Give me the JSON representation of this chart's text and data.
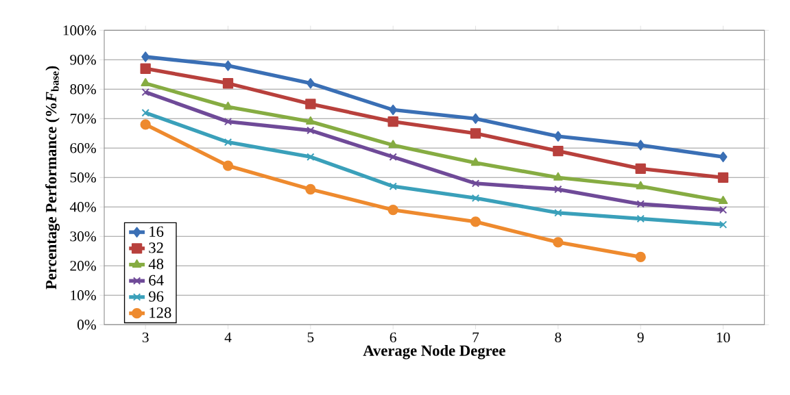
{
  "chart_data": {
    "type": "line",
    "xlabel": "Average Node Degree",
    "ylabel": "Percentage Performance (%*F*$_{base}$)",
    "categories": [
      "3",
      "4",
      "5",
      "6",
      "7",
      "8",
      "9",
      "10"
    ],
    "ylim": [
      0,
      100
    ],
    "yticks": [
      {
        "value": 0,
        "label": "0%"
      },
      {
        "value": 10,
        "label": "10%"
      },
      {
        "value": 20,
        "label": "20%"
      },
      {
        "value": 30,
        "label": "30%"
      },
      {
        "value": 40,
        "label": "40%"
      },
      {
        "value": 50,
        "label": "50%"
      },
      {
        "value": 60,
        "label": "60%"
      },
      {
        "value": 70,
        "label": "70%"
      },
      {
        "value": 80,
        "label": "80%"
      },
      {
        "value": 90,
        "label": "90%"
      },
      {
        "value": 100,
        "label": "100%"
      }
    ],
    "grid": "y",
    "legend": "bottom left",
    "line_style": "solid",
    "series": [
      {
        "name": "16",
        "color": "#3a6fb5",
        "marker": "diamond",
        "values": [
          91,
          88,
          82,
          73,
          70,
          64,
          61,
          57
        ]
      },
      {
        "name": "32",
        "color": "#b8403c",
        "marker": "square",
        "values": [
          87,
          82,
          75,
          69,
          65,
          59,
          53,
          50
        ]
      },
      {
        "name": "48",
        "color": "#86ac42",
        "marker": "triangle",
        "values": [
          82,
          74,
          69,
          61,
          55,
          50,
          47,
          42
        ]
      },
      {
        "name": "64",
        "color": "#6f4a98",
        "marker": "cross",
        "values": [
          79,
          69,
          66,
          57,
          48,
          46,
          41,
          39
        ]
      },
      {
        "name": "96",
        "color": "#3aa0ba",
        "marker": "cross",
        "values": [
          72,
          62,
          57,
          47,
          43,
          38,
          36,
          34
        ]
      },
      {
        "name": "128",
        "color": "#ee8a2e",
        "marker": "circle",
        "values": [
          68,
          54,
          46,
          39,
          35,
          28,
          23,
          null
        ]
      }
    ]
  }
}
